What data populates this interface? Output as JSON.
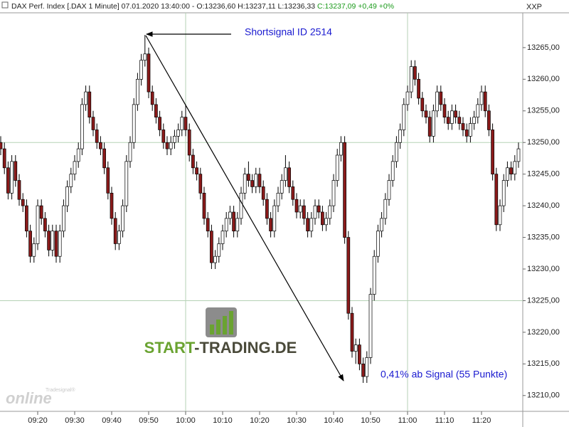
{
  "chart_data": {
    "type": "candlestick",
    "title": "DAX Perf. Index [.DAX  1 Minute] 07.01.2020 13:40:00 - O:13236,60 H:13237,11 L:13236,33",
    "subtitle": "C:13237,09 +0,49 +0%",
    "axis_code": "XXP",
    "annotations": [
      "Shortsignal ID 2514",
      "0,41% ab Signal (55 Punkte)"
    ],
    "logo": {
      "brand_start": "START",
      "brand_rest": "-TRADING.DE",
      "provider": "online",
      "provider_small": "Tradesignal®"
    },
    "up_color": "#ffffff",
    "down_color": "#8b1a1a",
    "grid": true,
    "categories": [
      null,
      null,
      null,
      null,
      null,
      null,
      null,
      null,
      null,
      null,
      "09:20",
      null,
      null,
      null,
      null,
      null,
      null,
      null,
      null,
      null,
      "09:30",
      null,
      null,
      null,
      null,
      null,
      null,
      null,
      null,
      null,
      "09:40",
      null,
      null,
      null,
      null,
      null,
      null,
      null,
      null,
      null,
      "09:50",
      null,
      null,
      null,
      null,
      null,
      null,
      null,
      null,
      null,
      "10:00",
      null,
      null,
      null,
      null,
      null,
      null,
      null,
      null,
      null,
      "10:10",
      null,
      null,
      null,
      null,
      null,
      null,
      null,
      null,
      null,
      "10:20",
      null,
      null,
      null,
      null,
      null,
      null,
      null,
      null,
      null,
      "10:30",
      null,
      null,
      null,
      null,
      null,
      null,
      null,
      null,
      null,
      "10:40",
      null,
      null,
      null,
      null,
      null,
      null,
      null,
      null,
      null,
      "10:50",
      null,
      null,
      null,
      null,
      null,
      null,
      null,
      null,
      null,
      "11:00",
      null,
      null,
      null,
      null,
      null,
      null,
      null,
      null,
      null,
      "11:10",
      null,
      null,
      null,
      null,
      null,
      null,
      null,
      null,
      null,
      "11:20",
      null,
      null,
      null,
      null,
      null,
      null,
      null,
      null,
      null,
      null
    ],
    "open": [
      13250,
      13249,
      13246,
      13242,
      13247,
      13244,
      13241,
      13240,
      13236,
      13232,
      13234,
      13240,
      13238,
      13236,
      13233,
      13236,
      13232,
      13236,
      13240,
      13243,
      13245,
      13247,
      13249,
      13256,
      13258,
      13254,
      13252,
      13250,
      13249,
      13246,
      13242,
      13238,
      13234,
      13236,
      13240,
      13247,
      13250,
      13256,
      13260,
      13263,
      13264,
      13258,
      13256,
      13254,
      13252,
      13250,
      13249,
      13250,
      13251,
      13252,
      13254,
      13252,
      13248,
      13246,
      13245,
      13242,
      13238,
      13236,
      13231,
      13232,
      13234,
      13236,
      13238,
      13239,
      13236,
      13238,
      13242,
      13245,
      13244,
      13243,
      13245,
      13243,
      13241,
      13238,
      13236,
      13240,
      13242,
      13244,
      13246,
      13243,
      13241,
      13239,
      13240,
      13238,
      13236,
      13238,
      13240,
      13239,
      13237,
      13238,
      13240,
      13244,
      13248,
      13250,
      13235,
      13223,
      13217,
      13218,
      13215,
      13213,
      13216,
      13226,
      13232,
      13236,
      13238,
      13241,
      13244,
      13247,
      13250,
      13252,
      13256,
      13258,
      13262,
      13260,
      13257,
      13255,
      13254,
      13251,
      13255,
      13258,
      13256,
      13254,
      13253,
      13255,
      13254,
      13253,
      13252,
      13251,
      13253,
      13254,
      13256,
      13258,
      13255,
      13252,
      13245,
      13237,
      13240,
      13244,
      13246,
      13245,
      13247
    ],
    "high": [
      13251,
      13250,
      13247,
      13248,
      13248,
      13245,
      13242,
      13241,
      13237,
      13235,
      13241,
      13241,
      13239,
      13237,
      13237,
      13237,
      13237,
      13241,
      13244,
      13246,
      13248,
      13250,
      13257,
      13259,
      13259,
      13255,
      13253,
      13251,
      13250,
      13247,
      13243,
      13239,
      13237,
      13241,
      13248,
      13251,
      13257,
      13261,
      13264,
      13267,
      13265,
      13259,
      13257,
      13255,
      13253,
      13251,
      13251,
      13252,
      13253,
      13255,
      13256,
      13253,
      13249,
      13247,
      13246,
      13243,
      13239,
      13237,
      13233,
      13235,
      13237,
      13239,
      13240,
      13240,
      13239,
      13243,
      13246,
      13247,
      13245,
      13246,
      13246,
      13244,
      13242,
      13239,
      13241,
      13243,
      13245,
      13248,
      13247,
      13244,
      13242,
      13241,
      13241,
      13239,
      13239,
      13241,
      13241,
      13240,
      13239,
      13241,
      13245,
      13249,
      13251,
      13251,
      13236,
      13224,
      13219,
      13219,
      13216,
      13217,
      13227,
      13233,
      13237,
      13239,
      13242,
      13245,
      13248,
      13251,
      13253,
      13257,
      13259,
      13263,
      13263,
      13261,
      13258,
      13256,
      13255,
      13256,
      13259,
      13259,
      13257,
      13255,
      13256,
      13256,
      13255,
      13254,
      13253,
      13254,
      13255,
      13257,
      13259,
      13259,
      13256,
      13253,
      13246,
      13241,
      13245,
      13247,
      13247,
      13248,
      13250
    ],
    "low": [
      13248,
      13245,
      13241,
      13241,
      13243,
      13240,
      13239,
      13235,
      13231,
      13231,
      13233,
      13237,
      13235,
      13232,
      13232,
      13231,
      13231,
      13235,
      13239,
      13242,
      13244,
      13246,
      13248,
      13255,
      13253,
      13251,
      13249,
      13248,
      13245,
      13241,
      13237,
      13233,
      13233,
      13235,
      13239,
      13246,
      13249,
      13255,
      13259,
      13262,
      13257,
      13255,
      13253,
      13251,
      13249,
      13248,
      13248,
      13249,
      13250,
      13251,
      13251,
      13247,
      13245,
      13244,
      13241,
      13237,
      13235,
      13230,
      13230,
      13231,
      13233,
      13235,
      13237,
      13235,
      13235,
      13237,
      13241,
      13243,
      13242,
      13242,
      13242,
      13240,
      13237,
      13235,
      13235,
      13239,
      13241,
      13243,
      13242,
      13240,
      13238,
      13238,
      13237,
      13235,
      13235,
      13237,
      13238,
      13236,
      13236,
      13237,
      13239,
      13243,
      13247,
      13234,
      13222,
      13216,
      13215,
      13214,
      13212,
      13212,
      13215,
      13225,
      13231,
      13235,
      13237,
      13240,
      13243,
      13246,
      13249,
      13251,
      13255,
      13257,
      13259,
      13256,
      13254,
      13253,
      13250,
      13250,
      13254,
      13255,
      13253,
      13252,
      13252,
      13253,
      13252,
      13251,
      13250,
      13250,
      13252,
      13253,
      13255,
      13254,
      13251,
      13244,
      13236,
      13236,
      13239,
      13243,
      13244,
      13244,
      13246
    ],
    "close": [
      13249,
      13246,
      13242,
      13247,
      13244,
      13241,
      13240,
      13236,
      13232,
      13234,
      13240,
      13238,
      13236,
      13233,
      13236,
      13232,
      13236,
      13240,
      13243,
      13245,
      13247,
      13249,
      13256,
      13258,
      13254,
      13252,
      13250,
      13249,
      13246,
      13242,
      13238,
      13234,
      13236,
      13240,
      13247,
      13250,
      13256,
      13260,
      13263,
      13264,
      13258,
      13256,
      13254,
      13252,
      13250,
      13249,
      13250,
      13251,
      13252,
      13254,
      13252,
      13248,
      13246,
      13245,
      13242,
      13238,
      13236,
      13231,
      13232,
      13234,
      13236,
      13238,
      13239,
      13236,
      13238,
      13242,
      13245,
      13244,
      13243,
      13245,
      13243,
      13241,
      13238,
      13236,
      13240,
      13242,
      13244,
      13246,
      13243,
      13241,
      13239,
      13240,
      13238,
      13236,
      13238,
      13240,
      13239,
      13237,
      13238,
      13240,
      13244,
      13248,
      13250,
      13235,
      13223,
      13217,
      13218,
      13215,
      13213,
      13216,
      13226,
      13232,
      13236,
      13238,
      13241,
      13244,
      13247,
      13250,
      13252,
      13256,
      13258,
      13262,
      13260,
      13257,
      13255,
      13254,
      13251,
      13255,
      13258,
      13256,
      13254,
      13253,
      13255,
      13254,
      13253,
      13252,
      13251,
      13253,
      13254,
      13256,
      13258,
      13255,
      13252,
      13245,
      13237,
      13240,
      13244,
      13246,
      13245,
      13247,
      13249
    ],
    "ylim": [
      13207.5,
      13270.5
    ],
    "yticks": [
      {
        "value": 13210,
        "label": "13210,00"
      },
      {
        "value": 13215,
        "label": "13215,00"
      },
      {
        "value": 13220,
        "label": "13220,00"
      },
      {
        "value": 13225,
        "label": "13225,00"
      },
      {
        "value": 13230,
        "label": "13230,00"
      },
      {
        "value": 13235,
        "label": "13235,00"
      },
      {
        "value": 13240,
        "label": "13240,00"
      },
      {
        "value": 13245,
        "label": "13245,00"
      },
      {
        "value": 13250,
        "label": "13250,00"
      },
      {
        "value": 13255,
        "label": "13255,00"
      },
      {
        "value": 13260,
        "label": "13260,00"
      },
      {
        "value": 13265,
        "label": "13265,00"
      }
    ]
  }
}
